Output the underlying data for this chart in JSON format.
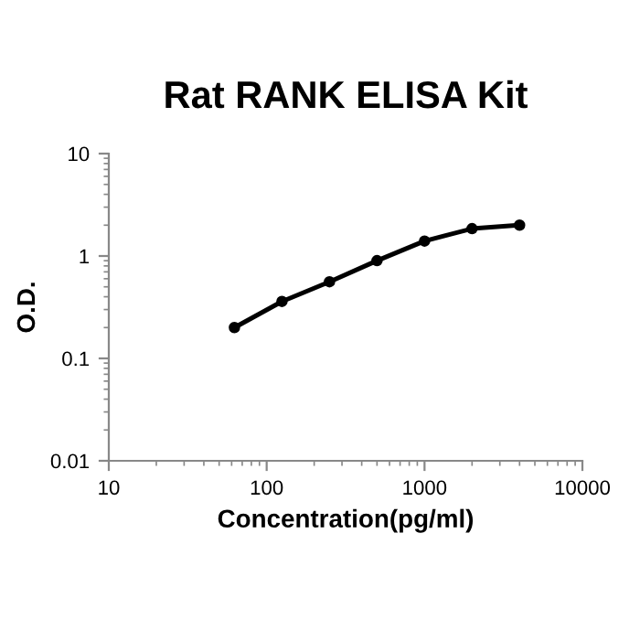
{
  "chart_data": {
    "type": "line",
    "title": "Rat RANK ELISA Kit",
    "xlabel": "Concentration(pg/ml)",
    "ylabel": "O.D.",
    "x": [
      62.5,
      125,
      250,
      500,
      1000,
      2000,
      4000
    ],
    "series": [
      {
        "color": "#000000",
        "values": [
          0.2,
          0.36,
          0.56,
          0.9,
          1.4,
          1.85,
          2.0
        ]
      }
    ],
    "log": "xy",
    "xlim": [
      10,
      10000
    ],
    "xticks": [
      10,
      100,
      1000,
      10000
    ],
    "ylim": [
      0.01,
      10
    ],
    "yticks": [
      0.01,
      0.1,
      1,
      10
    ],
    "marker": "circle",
    "line_style": "solid",
    "grid": false,
    "legend": false
  }
}
